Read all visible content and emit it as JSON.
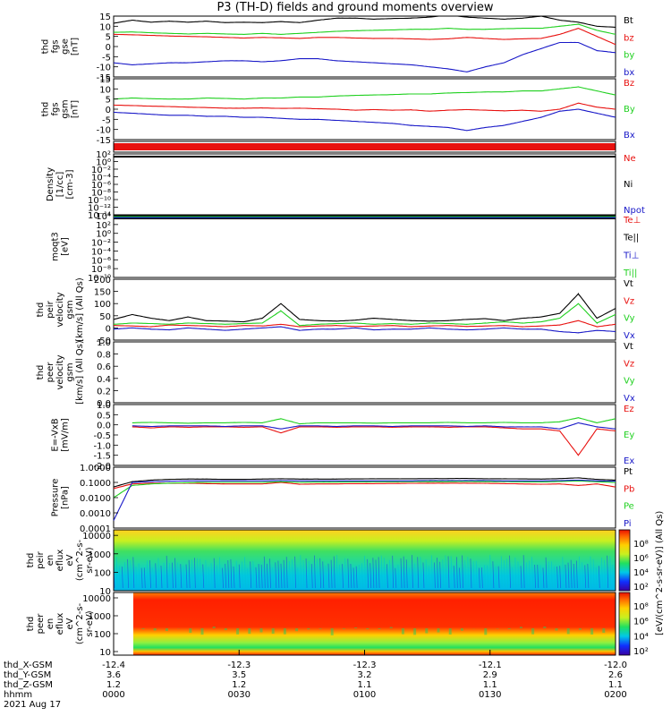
{
  "title": "P3 (TH-D) fields and ground moments overview",
  "palette": {
    "black": "#000000",
    "red": "#e8110f",
    "green": "#1fd01f",
    "blue": "#1818c8",
    "yellow": "#e8e800"
  },
  "chart_data": [
    {
      "type": "line",
      "ylabel": [
        "thd",
        "fgs",
        "gse",
        "[nT]"
      ],
      "ylim": [
        -15,
        15
      ],
      "ticks": [
        "15",
        "10",
        "5",
        "0",
        "-5",
        "-10",
        "-15"
      ],
      "tick_values": [
        15,
        10,
        5,
        0,
        -5,
        -10,
        -15
      ],
      "series": [
        {
          "name": "Bt",
          "color": "#000000",
          "values": [
            11.5,
            13,
            12,
            12.5,
            12,
            12.5,
            11.8,
            12,
            11.8,
            12.3,
            11.8,
            13,
            14,
            14,
            13.5,
            13.8,
            14,
            14.5,
            15.5,
            14.5,
            14,
            13.5,
            14,
            15,
            13,
            12,
            10,
            9.5
          ]
        },
        {
          "name": "bz",
          "color": "#e8110f",
          "values": [
            6,
            5.8,
            5.5,
            5.2,
            5,
            4.8,
            4.5,
            4.2,
            4.5,
            4.3,
            4,
            4.5,
            4.5,
            4.2,
            4,
            4,
            3.8,
            3.5,
            3.8,
            4.5,
            4,
            3.5,
            3.8,
            4,
            6,
            9,
            5,
            1
          ]
        },
        {
          "name": "by",
          "color": "#1fd01f",
          "values": [
            7,
            7.2,
            6.8,
            6.5,
            6.2,
            6.5,
            6.2,
            6,
            6.5,
            6,
            6.5,
            7,
            7.5,
            7.8,
            8,
            8.2,
            8.5,
            8.5,
            9,
            8.5,
            8.5,
            8.8,
            9,
            9,
            10,
            11,
            8,
            6
          ]
        },
        {
          "name": "bx",
          "color": "#1818c8",
          "values": [
            -8,
            -9,
            -8.5,
            -8,
            -8,
            -7.5,
            -7,
            -7,
            -7.5,
            -7,
            -6,
            -6,
            -7,
            -7.5,
            -8,
            -8.5,
            -9,
            -10,
            -11,
            -12.5,
            -10,
            -8,
            -4,
            -1,
            2,
            2,
            -2,
            -3
          ]
        }
      ]
    },
    {
      "type": "line",
      "ylabel": [
        "thd",
        "fgs",
        "gsm",
        "[nT]"
      ],
      "ylim": [
        -15,
        15
      ],
      "ticks": [
        "15",
        "10",
        "5",
        "0",
        "-5",
        "-10",
        "-15"
      ],
      "tick_values": [
        15,
        10,
        5,
        0,
        -5,
        -10,
        -15
      ],
      "series": [
        {
          "name": "Bz",
          "color": "#e8110f",
          "values": [
            2,
            1.8,
            1.5,
            1.3,
            1,
            0.8,
            0.5,
            0.5,
            0.6,
            0.4,
            0.5,
            0.2,
            0,
            -0.5,
            -0.2,
            -0.5,
            -0.3,
            -1,
            -0.5,
            -0.2,
            -0.5,
            -0.8,
            -0.5,
            -1,
            0,
            3,
            1,
            0
          ]
        },
        {
          "name": "By",
          "color": "#1fd01f",
          "values": [
            5,
            5.5,
            5.2,
            5,
            5,
            5.5,
            5.3,
            5,
            5.5,
            5.5,
            6,
            6,
            6.5,
            6.8,
            7,
            7.2,
            7.5,
            7.5,
            8,
            8.2,
            8.5,
            8.5,
            9,
            9,
            10,
            11,
            9,
            7
          ]
        },
        {
          "name": "Bx",
          "color": "#1818c8",
          "values": [
            -1.5,
            -2,
            -2.5,
            -3,
            -3,
            -3.5,
            -3.5,
            -4,
            -4,
            -4.5,
            -5,
            -5,
            -5.5,
            -6,
            -6.5,
            -7,
            -8,
            -8.5,
            -9,
            -10.5,
            -9,
            -8,
            -6,
            -4,
            -1,
            0,
            -2,
            -4
          ]
        }
      ]
    },
    {
      "type": "line",
      "ylabel": [
        "Density",
        "[1/cc]",
        "[cm-3]"
      ],
      "ylim": [
        -14,
        2
      ],
      "log": true,
      "ticks": [
        "10²",
        "10⁰",
        "10⁻²",
        "10⁻⁴",
        "10⁻⁶",
        "10⁻⁸",
        "10⁻¹⁰",
        "10⁻¹²",
        "10⁻¹⁴"
      ],
      "tick_values": [
        2,
        0,
        -2,
        -4,
        -6,
        -8,
        -10,
        -12,
        -14
      ],
      "series": [
        {
          "name": "Ne",
          "color": "#e8110f",
          "values": []
        },
        {
          "name": "Ni",
          "color": "#000000",
          "values": []
        },
        {
          "name": "Npot",
          "color": "#1818c8",
          "values": []
        }
      ]
    },
    {
      "type": "line",
      "ylabel": [
        "moqt3",
        "[eV]"
      ],
      "ylim": [
        -10,
        4
      ],
      "log": true,
      "ticks": [
        "10⁴",
        "10²",
        "10⁰",
        "10⁻²",
        "10⁻⁴",
        "10⁻⁶",
        "10⁻⁸",
        "10⁻¹⁰"
      ],
      "tick_values": [
        4,
        2,
        0,
        -2,
        -4,
        -6,
        -8,
        -10
      ],
      "series": [
        {
          "name": "Te⊥",
          "color": "#e8110f",
          "values": []
        },
        {
          "name": "Te||",
          "color": "#000000",
          "values": []
        },
        {
          "name": "Ti⊥",
          "color": "#1818c8",
          "values": []
        },
        {
          "name": "Ti||",
          "color": "#1fd01f",
          "values": []
        }
      ]
    },
    {
      "type": "line",
      "ylabel": [
        "thd",
        "peir",
        "velocity",
        "gsm",
        "[km/s] (All Qs)"
      ],
      "ylim": [
        -50,
        200
      ],
      "ticks": [
        "200",
        "150",
        "100",
        "50",
        "0",
        "-50"
      ],
      "tick_values": [
        200,
        150,
        100,
        50,
        0,
        -50
      ],
      "series": [
        {
          "name": "Vt",
          "color": "#000000",
          "values": [
            35,
            55,
            40,
            30,
            45,
            30,
            28,
            25,
            40,
            100,
            35,
            30,
            28,
            32,
            40,
            35,
            30,
            28,
            30,
            35,
            38,
            30,
            40,
            45,
            60,
            140,
            40,
            80
          ]
        },
        {
          "name": "Vz",
          "color": "#e8110f",
          "values": [
            10,
            8,
            5,
            12,
            10,
            8,
            5,
            10,
            8,
            15,
            5,
            8,
            10,
            6,
            8,
            10,
            5,
            8,
            10,
            6,
            8,
            10,
            5,
            8,
            12,
            30,
            5,
            15
          ]
        },
        {
          "name": "Vy",
          "color": "#1fd01f",
          "values": [
            15,
            20,
            18,
            15,
            20,
            18,
            15,
            18,
            20,
            70,
            10,
            15,
            18,
            20,
            15,
            18,
            15,
            20,
            18,
            15,
            20,
            25,
            20,
            25,
            40,
            100,
            20,
            55
          ]
        },
        {
          "name": "Vx",
          "color": "#1818c8",
          "values": [
            -5,
            0,
            -5,
            -8,
            0,
            -5,
            -10,
            -5,
            0,
            5,
            -10,
            -5,
            -5,
            0,
            -8,
            -5,
            -5,
            0,
            -5,
            -8,
            -5,
            0,
            -5,
            -5,
            -15,
            -20,
            -10,
            -15
          ]
        }
      ]
    },
    {
      "type": "line",
      "ylabel": [
        "thd",
        "peer",
        "velocity",
        "gsm",
        "[km/s] (All Qs)"
      ],
      "ylim": [
        0,
        1
      ],
      "ticks": [
        "1.0",
        "0.8",
        "0.6",
        "0.4",
        "0.2",
        "0.0"
      ],
      "tick_values": [
        1,
        0.8,
        0.6,
        0.4,
        0.2,
        0
      ],
      "series": [
        {
          "name": "Vt",
          "color": "#000000",
          "values": []
        },
        {
          "name": "Vz",
          "color": "#e8110f",
          "values": []
        },
        {
          "name": "Vy",
          "color": "#1fd01f",
          "values": []
        },
        {
          "name": "Vx",
          "color": "#1818c8",
          "values": []
        }
      ]
    },
    {
      "type": "line",
      "ylabel": [
        "E=-VxB",
        "[mV/m]"
      ],
      "ylim": [
        -2,
        1
      ],
      "ticks": [
        "1.0",
        "0.5",
        "0.0",
        "-0.5",
        "-1.0",
        "-1.5",
        "-2.0"
      ],
      "tick_values": [
        1,
        0.5,
        0,
        -0.5,
        -1,
        -1.5,
        -2
      ],
      "series": [
        {
          "name": "Ez",
          "color": "#e8110f",
          "values": [
            null,
            -0.1,
            -0.15,
            -0.1,
            -0.12,
            -0.1,
            -0.1,
            -0.12,
            -0.1,
            -0.4,
            -0.1,
            -0.1,
            -0.12,
            -0.1,
            -0.1,
            -0.12,
            -0.1,
            -0.1,
            -0.12,
            -0.1,
            -0.1,
            -0.15,
            -0.2,
            -0.2,
            -0.3,
            -1.5,
            -0.2,
            -0.3
          ]
        },
        {
          "name": "Ey",
          "color": "#1fd01f",
          "values": [
            null,
            0.1,
            0.12,
            0.1,
            0.08,
            0.1,
            0.1,
            0.12,
            0.1,
            0.3,
            0.05,
            0.1,
            0.1,
            0.1,
            0.08,
            0.1,
            0.1,
            0.1,
            0.12,
            0.1,
            0.1,
            0.12,
            0.1,
            0.1,
            0.15,
            0.35,
            0.1,
            0.3
          ]
        },
        {
          "name": "Ex",
          "color": "#1818c8",
          "values": [
            null,
            -0.05,
            -0.08,
            -0.05,
            -0.05,
            -0.05,
            -0.08,
            -0.05,
            -0.05,
            -0.2,
            -0.05,
            -0.05,
            -0.08,
            -0.05,
            -0.05,
            -0.08,
            -0.05,
            -0.05,
            -0.05,
            -0.08,
            -0.05,
            -0.1,
            -0.1,
            -0.1,
            -0.2,
            0.1,
            -0.1,
            -0.2
          ]
        }
      ]
    },
    {
      "type": "line",
      "ylabel": [
        "Pressure",
        "[nPa]"
      ],
      "ylim": [
        -4,
        0
      ],
      "log": true,
      "ticks": [
        "1.0000",
        "0.1000",
        "0.0100",
        "0.0010",
        "0.0001"
      ],
      "tick_values": [
        0,
        -1,
        -2,
        -3,
        -4
      ],
      "series": [
        {
          "name": "Pt",
          "color": "#000000",
          "values": [
            -1.3,
            -0.95,
            -0.85,
            -0.8,
            -0.78,
            -0.78,
            -0.8,
            -0.8,
            -0.78,
            -0.76,
            -0.78,
            -0.78,
            -0.78,
            -0.77,
            -0.76,
            -0.76,
            -0.76,
            -0.75,
            -0.75,
            -0.74,
            -0.76,
            -0.76,
            -0.77,
            -0.78,
            -0.75,
            -0.7,
            -0.8,
            -0.85
          ]
        },
        {
          "name": "Pb",
          "color": "#e8110f",
          "values": [
            -1.4,
            -1.1,
            -1.05,
            -1.05,
            -1.05,
            -1.08,
            -1.1,
            -1.1,
            -1.1,
            -1.0,
            -1.12,
            -1.1,
            -1.1,
            -1.08,
            -1.08,
            -1.07,
            -1.06,
            -1.05,
            -1.05,
            -1.05,
            -1.06,
            -1.08,
            -1.1,
            -1.12,
            -1.1,
            -1.2,
            -1.1,
            -1.3
          ]
        },
        {
          "name": "Pe",
          "color": "#1fd01f",
          "values": [
            -2,
            -1.2,
            -1.1,
            -1.05,
            -1.02,
            -1.0,
            -1.0,
            -1.0,
            -1.0,
            -0.95,
            -1.0,
            -0.98,
            -0.98,
            -0.97,
            -0.96,
            -0.96,
            -0.95,
            -0.95,
            -0.95,
            -0.94,
            -0.95,
            -0.95,
            -0.96,
            -0.97,
            -0.94,
            -0.9,
            -0.96,
            -1.0
          ]
        },
        {
          "name": "Pi",
          "color": "#1818c8",
          "values": [
            -3.5,
            -1.0,
            -0.95,
            -0.92,
            -0.9,
            -0.9,
            -0.9,
            -0.9,
            -0.9,
            -0.88,
            -0.9,
            -0.9,
            -0.9,
            -0.9,
            -0.9,
            -0.9,
            -0.9,
            -0.88,
            -0.88,
            -0.88,
            -0.88,
            -0.9,
            -0.9,
            -0.9,
            -0.88,
            -0.85,
            -0.9,
            -0.92
          ]
        }
      ]
    },
    {
      "type": "heatmap",
      "ylabel": [
        "thd",
        "peir",
        "en",
        "eflux",
        "eV",
        "(cm^2-s-",
        "sr-eV)"
      ],
      "ylim": [
        1,
        4.3
      ],
      "log": true,
      "ticks": [
        "10000",
        "1000",
        "100",
        "10"
      ],
      "tick_values": [
        4,
        3,
        2,
        1
      ],
      "colorbar_ticks": [
        "10⁸",
        "10⁶",
        "10⁴",
        "10²"
      ],
      "colorbar_title": "[eV/(cm^2-s-sr-eV)] (All Qs)"
    },
    {
      "type": "heatmap",
      "ylabel": [
        "thd",
        "peer",
        "en",
        "eflux",
        "eV",
        "(cm^2-s-",
        "sr-eV)"
      ],
      "ylim": [
        0.8,
        4.3
      ],
      "log": true,
      "ticks": [
        "10000",
        "1000",
        "100",
        "10"
      ],
      "tick_values": [
        4,
        3,
        2,
        1
      ],
      "colorbar_ticks": [
        "10⁸",
        "10⁶",
        "10⁴",
        "10²"
      ],
      "colorbar_title": "[eV/(cm^2-s-sr-eV)] (All Qs)"
    }
  ],
  "xaxis": {
    "row_labels": [
      "thd_X-GSM",
      "thd_Y-GSM",
      "thd_Z-GSM",
      "hhmm",
      "2021 Aug 17"
    ],
    "columns": [
      {
        "x": "-12.4",
        "y": "3.6",
        "z": "1.2",
        "t": "0000"
      },
      {
        "x": "-12.3",
        "y": "3.5",
        "z": "1.2",
        "t": "0030"
      },
      {
        "x": "-12.3",
        "y": "3.2",
        "z": "1.1",
        "t": "0100"
      },
      {
        "x": "-12.1",
        "y": "2.9",
        "z": "1.1",
        "t": "0130"
      },
      {
        "x": "-12.0",
        "y": "2.6",
        "z": "1.1",
        "t": "0200"
      }
    ]
  }
}
